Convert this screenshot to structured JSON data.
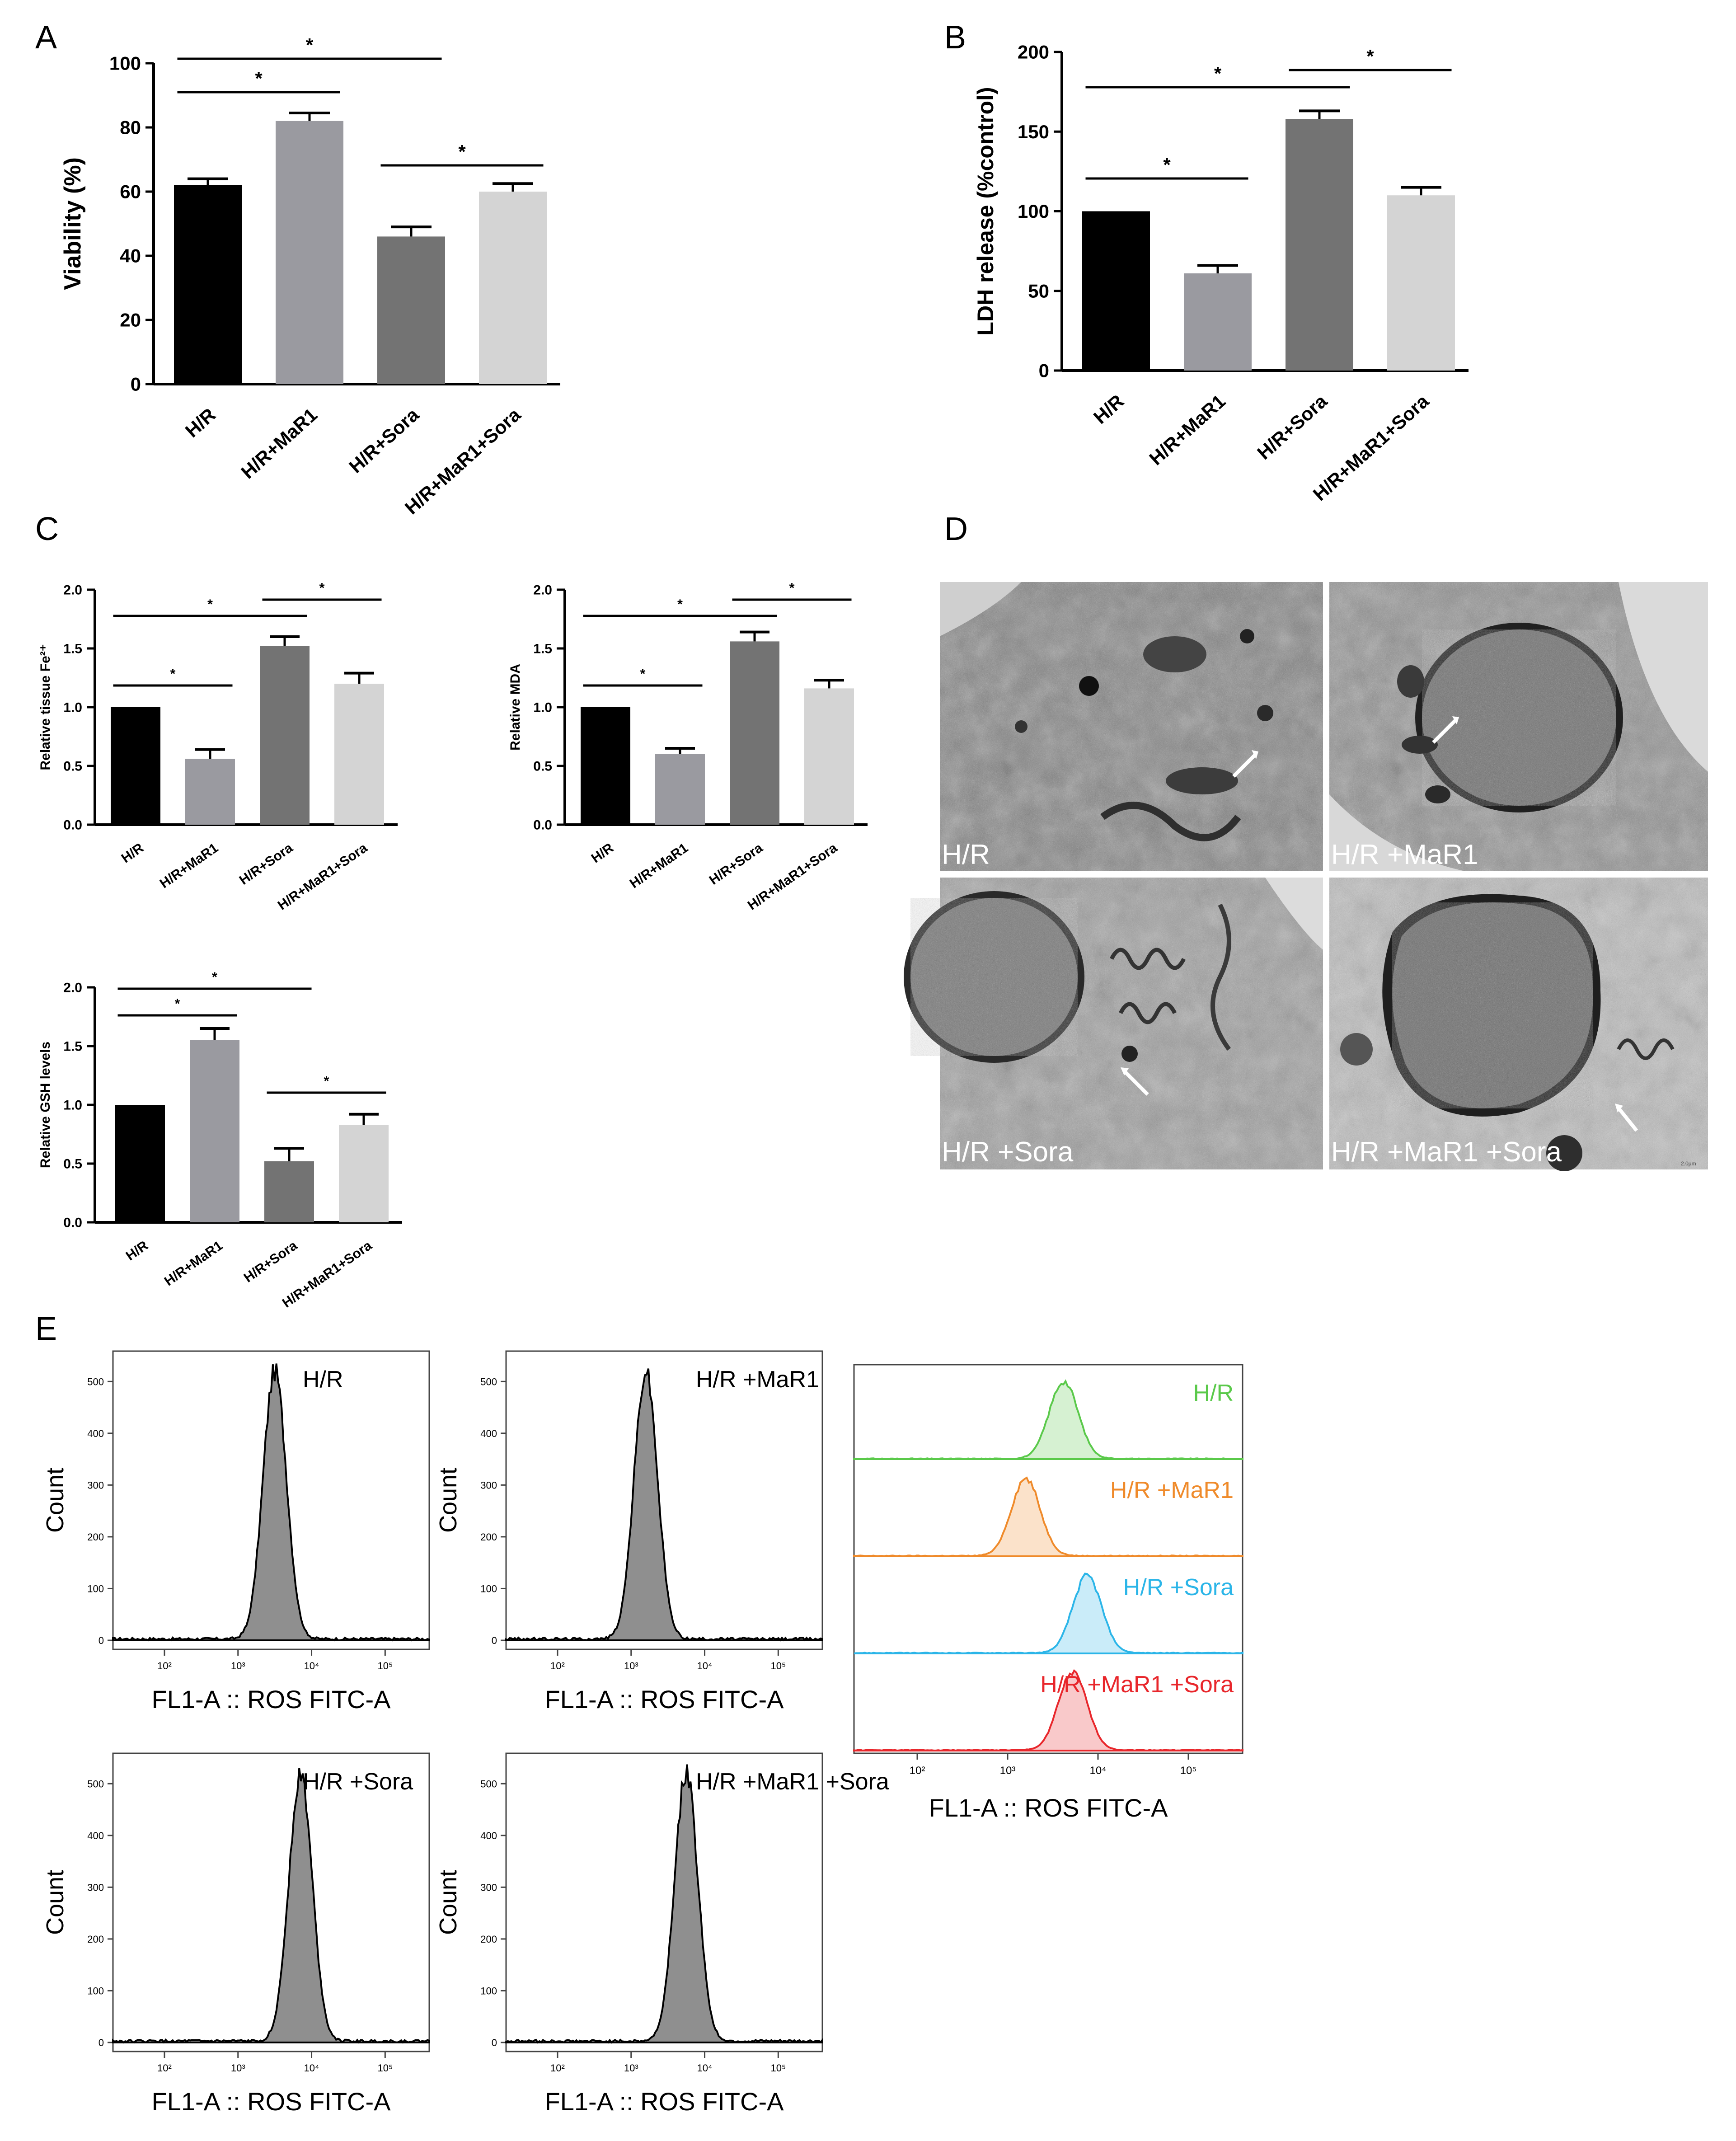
{
  "figure": {
    "panel_labels": [
      "A",
      "B",
      "C",
      "D",
      "E"
    ]
  },
  "chart_data": [
    {
      "id": "A",
      "type": "bar",
      "categories": [
        "H/R",
        "H/R+MaR1",
        "H/R+Sora",
        "H/R+MaR1+Sora"
      ],
      "values": [
        62,
        82,
        46,
        60
      ],
      "errors": [
        2,
        2.5,
        3,
        2.5
      ],
      "ylabel": "Viability (%)",
      "ylim": [
        0,
        100
      ],
      "yticks": [
        "0",
        "20",
        "40",
        "60",
        "80",
        "100"
      ],
      "colors": [
        "#000000",
        "#9a9aa0",
        "#737373",
        "#d4d4d4"
      ],
      "significance": [
        {
          "from": 0,
          "to": 2,
          "label": "*"
        },
        {
          "from": 0,
          "to": 1,
          "label": "*"
        },
        {
          "from": 2,
          "to": 3,
          "label": "*"
        }
      ]
    },
    {
      "id": "B",
      "type": "bar",
      "categories": [
        "H/R",
        "H/R+MaR1",
        "H/R+Sora",
        "H/R+MaR1+Sora"
      ],
      "values": [
        100,
        61,
        158,
        110
      ],
      "errors": [
        0,
        5,
        5,
        5
      ],
      "ylabel": "LDH release (%control)",
      "ylim": [
        0,
        200
      ],
      "yticks": [
        "0",
        "50",
        "100",
        "150",
        "200"
      ],
      "colors": [
        "#000000",
        "#9a9aa0",
        "#737373",
        "#d4d4d4"
      ],
      "significance": [
        {
          "from": 0,
          "to": 2,
          "label": "*"
        },
        {
          "from": 2,
          "to": 3,
          "label": "*"
        },
        {
          "from": 0,
          "to": 1,
          "label": "*"
        }
      ]
    },
    {
      "id": "C1",
      "type": "bar",
      "categories": [
        "H/R",
        "H/R+MaR1",
        "H/R+Sora",
        "H/R+MaR1+Sora"
      ],
      "values": [
        1.0,
        0.56,
        1.52,
        1.2
      ],
      "errors": [
        0,
        0.08,
        0.08,
        0.09
      ],
      "ylabel": "Relative tissue Fe²⁺",
      "ylim": [
        0,
        2.0
      ],
      "yticks": [
        "0.0",
        "0.5",
        "1.0",
        "1.5",
        "2.0"
      ],
      "colors": [
        "#000000",
        "#9a9aa0",
        "#737373",
        "#d4d4d4"
      ],
      "significance": [
        {
          "from": 0,
          "to": 2,
          "label": "*"
        },
        {
          "from": 2,
          "to": 3,
          "label": "*"
        },
        {
          "from": 0,
          "to": 1,
          "label": "*"
        }
      ]
    },
    {
      "id": "C2",
      "type": "bar",
      "categories": [
        "H/R",
        "H/R+MaR1",
        "H/R+Sora",
        "H/R+MaR1+Sora"
      ],
      "values": [
        1.0,
        0.6,
        1.56,
        1.16
      ],
      "errors": [
        0,
        0.05,
        0.08,
        0.07
      ],
      "ylabel": "Relative MDA",
      "ylim": [
        0,
        2.0
      ],
      "yticks": [
        "0.0",
        "0.5",
        "1.0",
        "1.5",
        "2.0"
      ],
      "colors": [
        "#000000",
        "#9a9aa0",
        "#737373",
        "#d4d4d4"
      ],
      "significance": [
        {
          "from": 0,
          "to": 2,
          "label": "*"
        },
        {
          "from": 2,
          "to": 3,
          "label": "*"
        },
        {
          "from": 0,
          "to": 1,
          "label": "*"
        }
      ]
    },
    {
      "id": "C3",
      "type": "bar",
      "categories": [
        "H/R",
        "H/R+MaR1",
        "H/R+Sora",
        "H/R+MaR1+Sora"
      ],
      "values": [
        1.0,
        1.55,
        0.52,
        0.83
      ],
      "errors": [
        0,
        0.1,
        0.11,
        0.09
      ],
      "ylabel": "Relative GSH levels",
      "ylim": [
        0,
        2.0
      ],
      "yticks": [
        "0.0",
        "0.5",
        "1.0",
        "1.5",
        "2.0"
      ],
      "colors": [
        "#000000",
        "#9a9aa0",
        "#737373",
        "#d4d4d4"
      ],
      "significance": [
        {
          "from": 0,
          "to": 2,
          "label": "*"
        },
        {
          "from": 0,
          "to": 1,
          "label": "*"
        },
        {
          "from": 2,
          "to": 3,
          "label": "*"
        }
      ]
    },
    {
      "id": "E1",
      "type": "histogram",
      "title": "H/R",
      "log10_peak": 3.5,
      "xlabel": "FL1-A :: ROS FITC-A",
      "ylabel": "Count",
      "yticks": [
        "0",
        "100",
        "200",
        "300",
        "400",
        "500"
      ],
      "xticks": [
        "10²",
        "10³",
        "10⁴",
        "10⁵"
      ]
    },
    {
      "id": "E2",
      "type": "histogram",
      "title": "H/R +MaR1",
      "log10_peak": 3.2,
      "xlabel": "FL1-A :: ROS FITC-A",
      "ylabel": "Count",
      "yticks": [
        "0",
        "100",
        "200",
        "300",
        "400",
        "500"
      ],
      "xticks": [
        "10²",
        "10³",
        "10⁴",
        "10⁵"
      ]
    },
    {
      "id": "E3",
      "type": "histogram",
      "title": "H/R +Sora",
      "log10_peak": 3.85,
      "xlabel": "FL1-A :: ROS FITC-A",
      "ylabel": "Count",
      "yticks": [
        "0",
        "100",
        "200",
        "300",
        "400",
        "500"
      ],
      "xticks": [
        "10²",
        "10³",
        "10⁴",
        "10⁵"
      ]
    },
    {
      "id": "E4",
      "type": "histogram",
      "title": "H/R +MaR1 +Sora",
      "log10_peak": 3.75,
      "xlabel": "FL1-A :: ROS FITC-A",
      "ylabel": "Count",
      "yticks": [
        "0",
        "100",
        "200",
        "300",
        "400",
        "500"
      ],
      "xticks": [
        "10²",
        "10³",
        "10⁴",
        "10⁵"
      ]
    },
    {
      "id": "E5",
      "type": "histogram-overlay",
      "xlabel": "FL1-A :: ROS FITC-A",
      "xticks": [
        "10²",
        "10³",
        "10⁴",
        "10⁵"
      ],
      "series": [
        {
          "name": "H/R",
          "log10_peak": 3.62,
          "color": "#5ac94a"
        },
        {
          "name": "H/R +MaR1",
          "log10_peak": 3.2,
          "color": "#ef8a2a"
        },
        {
          "name": "H/R +Sora",
          "log10_peak": 3.88,
          "color": "#2bb5e8"
        },
        {
          "name": "H/R +MaR1 +Sora",
          "log10_peak": 3.72,
          "color": "#e8262b"
        }
      ]
    }
  ],
  "tem": {
    "panels": [
      {
        "label": "H/R"
      },
      {
        "label": "H/R +MaR1"
      },
      {
        "label": "H/R +Sora"
      },
      {
        "label": "H/R +MaR1 +Sora"
      }
    ],
    "scale_label": "2.0μm"
  }
}
